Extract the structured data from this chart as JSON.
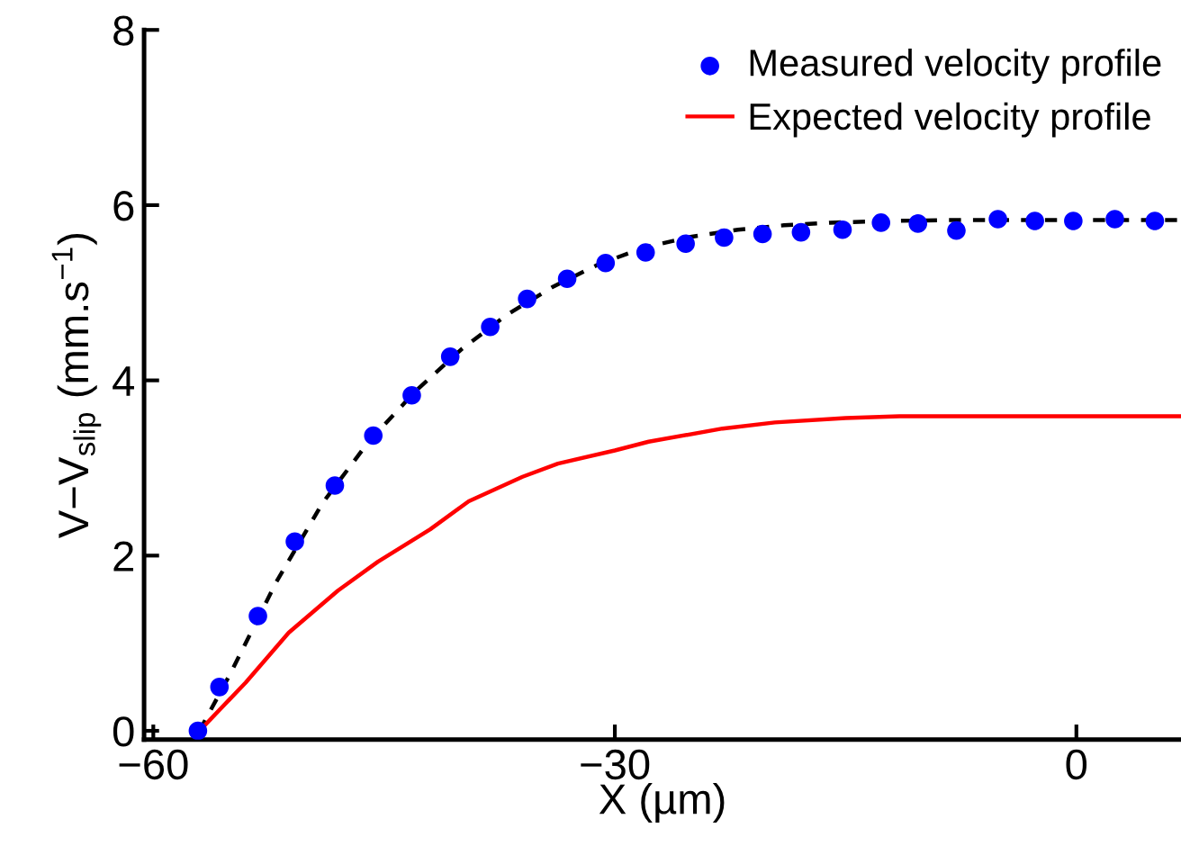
{
  "chart_data": {
    "type": "line",
    "xlabel": "X (µm)",
    "ylabel": "V−V$_{slip}$ (mm.s$^{−1}$)",
    "xlim": [
      -60.6,
      6.8
    ],
    "ylim": [
      -0.1,
      8
    ],
    "xticks": [
      -60,
      -30,
      0
    ],
    "yticks": [
      0,
      2,
      4,
      6,
      8
    ],
    "grid": false,
    "legend": "top right",
    "series": [
      {
        "color": "#000000",
        "line_style": "dashed",
        "marker": "none",
        "x": [
          -57,
          -55,
          -52,
          -49,
          -46,
          -43,
          -40,
          -37,
          -34,
          -31,
          -28,
          -25,
          -22,
          -19,
          -16,
          -12,
          -8,
          0,
          6.8
        ],
        "values": [
          0,
          0.65,
          1.7,
          2.6,
          3.3,
          3.87,
          4.35,
          4.75,
          5.07,
          5.33,
          5.52,
          5.64,
          5.72,
          5.77,
          5.8,
          5.82,
          5.83,
          5.83,
          5.83
        ]
      },
      {
        "type": "scatter",
        "name": "Measured velocity profile",
        "color": "#0000ff",
        "marker": "circle",
        "x": [
          -57.1,
          -55.7,
          -53.2,
          -50.8,
          -48.2,
          -45.7,
          -43.2,
          -40.7,
          -38.1,
          -35.7,
          -33.1,
          -30.6,
          -28.0,
          -25.4,
          -22.9,
          -20.4,
          -17.9,
          -15.2,
          -12.7,
          -10.3,
          -7.8,
          -5.1,
          -2.7,
          -0.2,
          2.5,
          5.1
        ],
        "values": [
          0,
          0.5,
          1.31,
          2.16,
          2.8,
          3.37,
          3.83,
          4.27,
          4.61,
          4.93,
          5.16,
          5.34,
          5.46,
          5.56,
          5.63,
          5.67,
          5.69,
          5.72,
          5.8,
          5.79,
          5.71,
          5.84,
          5.82,
          5.82,
          5.84,
          5.82
        ]
      },
      {
        "name": "Expected velocity profile",
        "color": "#ff0000",
        "line_style": "solid",
        "marker": "none",
        "x": [
          -57,
          -54,
          -51.2,
          -48,
          -45.4,
          -42,
          -39.5,
          -36,
          -33.7,
          -30,
          -27.8,
          -23,
          -19.6,
          -15,
          -11.5,
          0,
          6.8
        ],
        "values": [
          0,
          0.55,
          1.12,
          1.6,
          1.93,
          2.3,
          2.62,
          2.9,
          3.05,
          3.2,
          3.3,
          3.45,
          3.52,
          3.57,
          3.59,
          3.59,
          3.59
        ]
      }
    ]
  }
}
